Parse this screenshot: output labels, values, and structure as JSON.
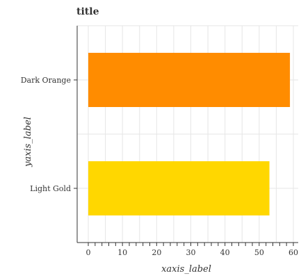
{
  "chart_data": {
    "type": "bar",
    "orientation": "horizontal",
    "title": "title",
    "xlabel": "xaxis_label",
    "ylabel": "yaxis_label",
    "categories": [
      "Dark Orange",
      "Light Gold"
    ],
    "values": [
      59,
      53
    ],
    "colors": [
      "#ff8c00",
      "#ffd700"
    ],
    "xlim": [
      0,
      61.95
    ],
    "xticks": [
      0,
      10,
      20,
      30,
      40,
      50,
      60
    ],
    "xtick_labels": [
      "0",
      "10",
      "20",
      "30",
      "40",
      "50",
      "60"
    ],
    "grid": true,
    "legend": "none"
  }
}
